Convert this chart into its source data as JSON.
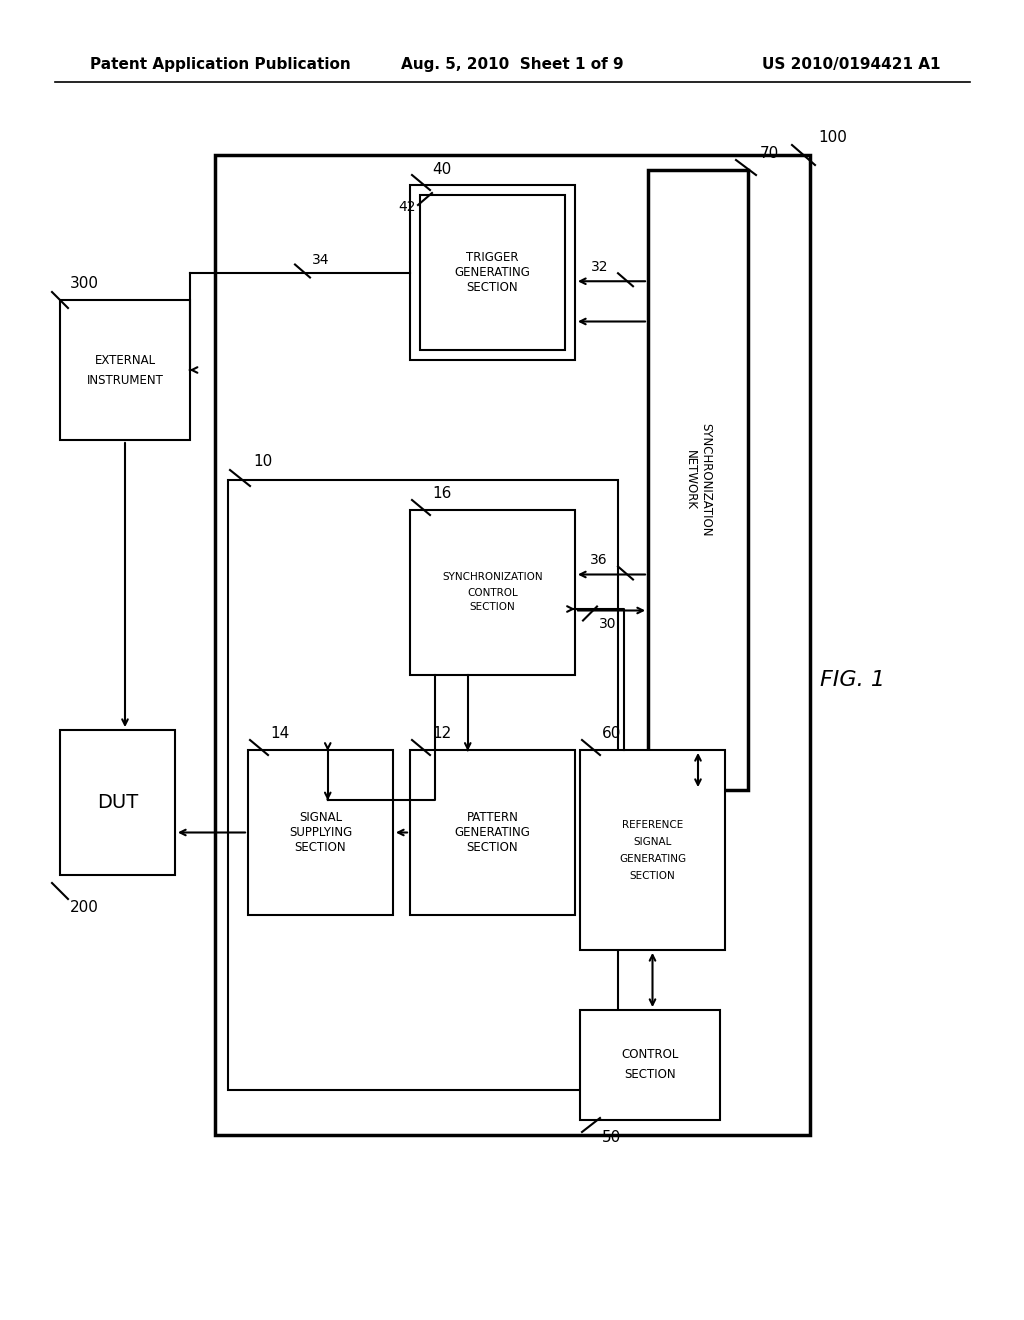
{
  "header_left": "Patent Application Publication",
  "header_center": "Aug. 5, 2010  Sheet 1 of 9",
  "header_right": "US 2010/0194421 A1",
  "figure_label": "FIG. 1",
  "background_color": "#ffffff"
}
